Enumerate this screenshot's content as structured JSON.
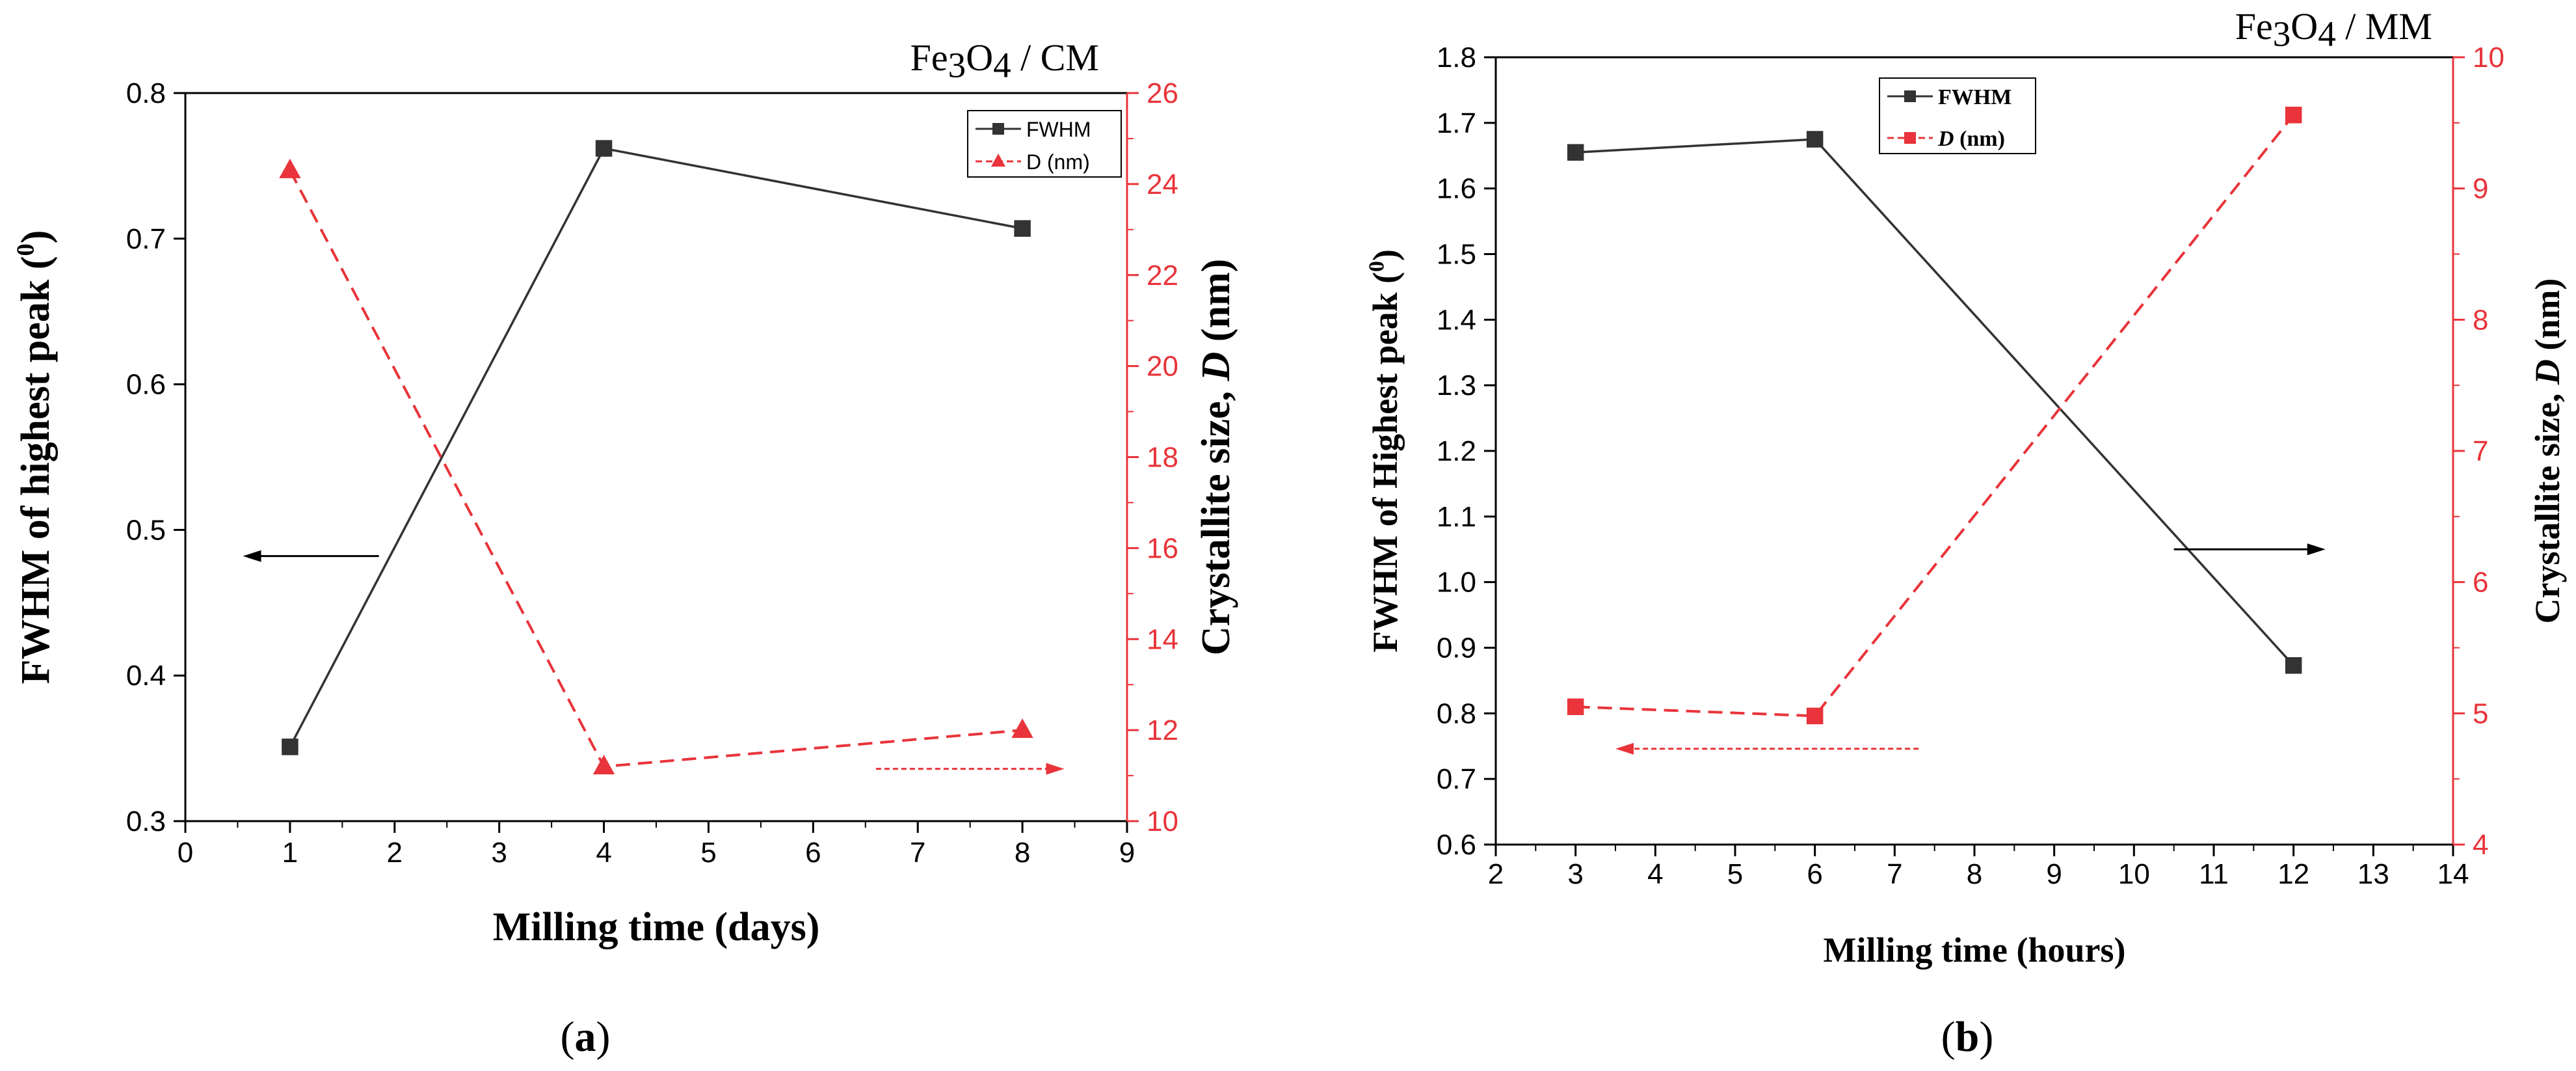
{
  "colors": {
    "black": "#333333",
    "red": "#e8343a",
    "axis_black": "#000000"
  },
  "chart_data": [
    {
      "panel": "a",
      "panel_label": "(a)",
      "type": "line",
      "title": "Fe3O4 / CM",
      "title_parts": {
        "pre": "Fe",
        "sub1": "3",
        "mid": "O",
        "sub2": "4",
        "post": " / CM"
      },
      "xlabel": "Milling time (days)",
      "ylabel_left": "FWHM of highest peak (",
      "ylabel_left_sup": "0",
      "ylabel_left_end": ")",
      "ylabel_right_pre": "Crystallite size, ",
      "ylabel_right_var": "D",
      "ylabel_right_post": " (nm)",
      "xlim": [
        0,
        9
      ],
      "ylim_left": [
        0.3,
        0.8
      ],
      "ylim_right": [
        10,
        26
      ],
      "x_ticks": [
        0,
        1,
        2,
        3,
        4,
        5,
        6,
        7,
        8,
        9
      ],
      "y_ticks_left": [
        0.3,
        0.4,
        0.5,
        0.6,
        0.7,
        0.8
      ],
      "y_ticks_left_labels": [
        "0.3",
        "0.4",
        "0.5",
        "0.6",
        "0.7",
        "0.8"
      ],
      "y_ticks_right": [
        10,
        12,
        14,
        16,
        18,
        20,
        22,
        24,
        26
      ],
      "series": [
        {
          "name": "FWHM",
          "axis": "left",
          "color": "#333333",
          "marker": "square",
          "dashed": false,
          "x": [
            1,
            4,
            8
          ],
          "y": [
            0.351,
            0.762,
            0.707
          ]
        },
        {
          "name": "D (nm)",
          "axis": "right",
          "color": "#e8343a",
          "marker": "triangle",
          "dashed": true,
          "x": [
            1,
            4,
            8
          ],
          "y": [
            24.3,
            11.2,
            12.0
          ]
        }
      ],
      "legend": {
        "position": "top-right",
        "entries": [
          "FWHM",
          "D (nm)"
        ],
        "bold": false
      },
      "annotations": [
        {
          "type": "arrow",
          "direction": "left",
          "color": "#000000",
          "axis": "left",
          "x": [
            1.85,
            0.55
          ],
          "y": 0.482,
          "dashed": false
        },
        {
          "type": "arrow",
          "direction": "right",
          "color": "#e8343a",
          "axis": "right",
          "x": [
            6.6,
            8.4
          ],
          "y": 11.15,
          "dashed": true
        }
      ]
    },
    {
      "panel": "b",
      "panel_label": "(b)",
      "type": "line",
      "title": "Fe3O4 / MM",
      "title_parts": {
        "pre": "Fe",
        "sub1": "3",
        "mid": "O",
        "sub2": "4",
        "post": " / MM"
      },
      "xlabel": "Milling time (hours)",
      "ylabel_left": "FWHM of Highest peak (",
      "ylabel_left_sup": "0",
      "ylabel_left_end": ")",
      "ylabel_right_pre": "Crystallite size, ",
      "ylabel_right_var": "D",
      "ylabel_right_post": " (nm)",
      "xlim": [
        2,
        14
      ],
      "ylim_left": [
        0.6,
        1.8
      ],
      "ylim_right": [
        4,
        10
      ],
      "x_ticks": [
        2,
        3,
        4,
        5,
        6,
        7,
        8,
        9,
        10,
        11,
        12,
        13,
        14
      ],
      "y_ticks_left": [
        0.6,
        0.7,
        0.8,
        0.9,
        1.0,
        1.1,
        1.2,
        1.3,
        1.4,
        1.5,
        1.6,
        1.7,
        1.8
      ],
      "y_ticks_left_labels": [
        "0.6",
        "0.7",
        "0.8",
        "0.9",
        "1.0",
        "1.1",
        "1.2",
        "1.3",
        "1.4",
        "1.5",
        "1.6",
        "1.7",
        "1.8"
      ],
      "y_ticks_right": [
        4,
        5,
        6,
        7,
        8,
        9,
        10
      ],
      "series": [
        {
          "name": "FWHM",
          "axis": "left",
          "color": "#333333",
          "marker": "square",
          "dashed": false,
          "x": [
            3,
            6,
            12
          ],
          "y": [
            1.655,
            1.675,
            0.873
          ]
        },
        {
          "name": "D (nm)",
          "axis": "right",
          "color": "#e8343a",
          "marker": "square",
          "dashed": true,
          "x": [
            3,
            6,
            12
          ],
          "y": [
            5.05,
            4.98,
            9.56
          ]
        }
      ],
      "legend": {
        "position": "top-left",
        "entries": [
          "FWHM",
          "D (nm)"
        ],
        "bold": true
      },
      "annotations": [
        {
          "type": "arrow",
          "direction": "right",
          "color": "#000000",
          "axis": "left",
          "x": [
            10.5,
            12.4
          ],
          "y": 1.05,
          "dashed": false
        },
        {
          "type": "arrow",
          "direction": "left",
          "color": "#e8343a",
          "axis": "right",
          "x": [
            7.3,
            3.5
          ],
          "y": 4.73,
          "dashed": true
        }
      ]
    }
  ]
}
